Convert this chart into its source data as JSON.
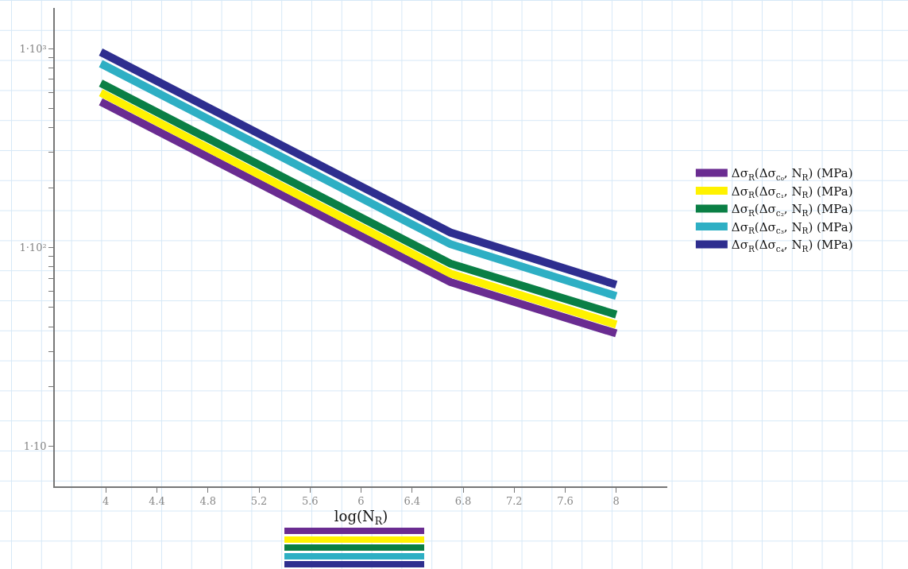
{
  "chart_data": {
    "type": "line",
    "xlabel": "log(N$_{R}$)",
    "x": [
      3.96,
      6.7,
      8
    ],
    "series": [
      {
        "name": "Δσ$_{R}$(Δσ$_{c₀}$, N$_{R}$) (MPa)",
        "color": "#6a2c91",
        "values": [
          540,
          67,
          37
        ]
      },
      {
        "name": "Δσ$_{R}$(Δσ$_{c₁}$, N$_{R}$) (MPa)",
        "color": "#fff200",
        "values": [
          600,
          74,
          41
        ]
      },
      {
        "name": "Δσ$_{R}$(Δσ$_{c₂}$, N$_{R}$) (MPa)",
        "color": "#0a7f45",
        "values": [
          670,
          83,
          46
        ]
      },
      {
        "name": "Δσ$_{R}$(Δσ$_{c₃}$, N$_{R}$) (MPa)",
        "color": "#2eafc4",
        "values": [
          840,
          104,
          57
        ]
      },
      {
        "name": "Δσ$_{R}$(Δσ$_{c₄}$, N$_{R}$) (MPa)",
        "color": "#2e2e8f",
        "values": [
          960,
          119,
          65
        ]
      }
    ],
    "log": "y",
    "xlim": [
      3.6,
      8.4
    ],
    "xticks": [
      4,
      4.4,
      4.8,
      5.2,
      5.6,
      6,
      6.4,
      6.8,
      7.2,
      7.6,
      8
    ],
    "ylim": [
      6.3,
      1600
    ],
    "yticks": [
      {
        "value": 10,
        "label": "1·10"
      },
      {
        "value": 20,
        "label": null
      },
      {
        "value": 30,
        "label": null
      },
      {
        "value": 40,
        "label": null
      },
      {
        "value": 50,
        "label": null
      },
      {
        "value": 60,
        "label": null
      },
      {
        "value": 70,
        "label": null
      },
      {
        "value": 80,
        "label": null
      },
      {
        "value": 90,
        "label": null
      },
      {
        "value": 100,
        "label": "1·10²"
      },
      {
        "value": 200,
        "label": null
      },
      {
        "value": 300,
        "label": null
      },
      {
        "value": 400,
        "label": null
      },
      {
        "value": 500,
        "label": null
      },
      {
        "value": 600,
        "label": null
      },
      {
        "value": 700,
        "label": null
      },
      {
        "value": 800,
        "label": null
      },
      {
        "value": 900,
        "label": null
      },
      {
        "value": 1000,
        "label": "1·10³"
      }
    ],
    "grid": false,
    "legend": "right",
    "line_style": "solid",
    "marker": "none"
  }
}
